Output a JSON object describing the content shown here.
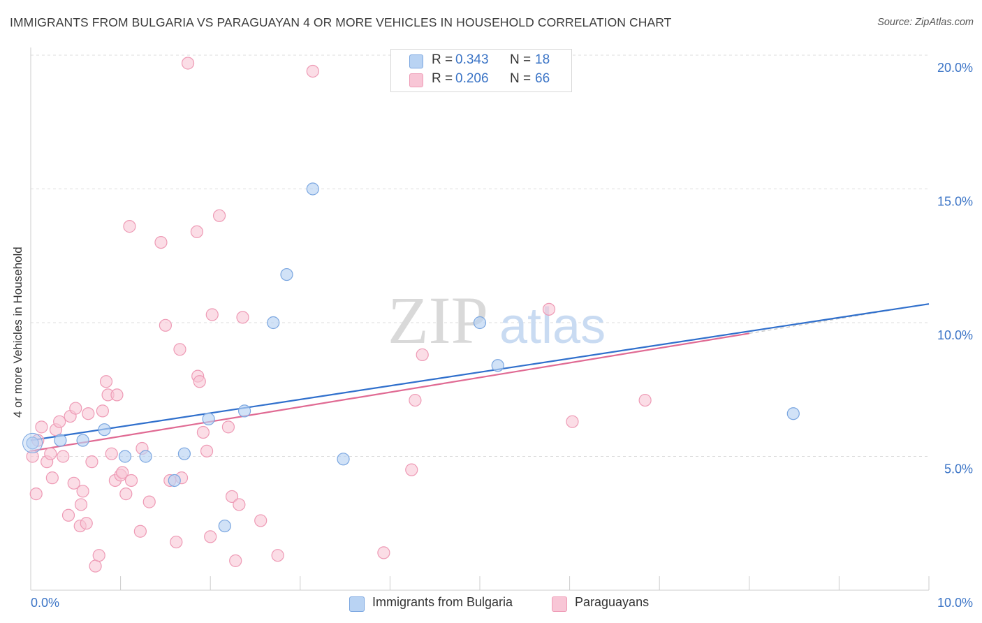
{
  "title": "IMMIGRANTS FROM BULGARIA VS PARAGUAYAN 4 OR MORE VEHICLES IN HOUSEHOLD CORRELATION CHART",
  "source": "Source: ZipAtlas.com",
  "watermark": {
    "zip": "ZIP",
    "atlas": "atlas"
  },
  "colors": {
    "blue_fill": "#b9d3f3",
    "blue_stroke": "#7aa6e0",
    "blue_line": "#2f6fcc",
    "pink_fill": "#f8c6d6",
    "pink_stroke": "#ee9ab5",
    "pink_line": "#e06a93",
    "tick_label": "#3b74c6",
    "grid": "#dcdcdc"
  },
  "legend": {
    "rows": [
      {
        "r_label": "R =",
        "r_value": "0.343",
        "n_label": "N =",
        "n_value": "18"
      },
      {
        "r_label": "R =",
        "r_value": "0.206",
        "n_label": "N =",
        "n_value": "66"
      }
    ]
  },
  "bottom_legend": {
    "series1": "Immigrants from Bulgaria",
    "series2": "Paraguayans"
  },
  "chart_data": {
    "type": "scatter",
    "title": "IMMIGRANTS FROM BULGARIA VS PARAGUAYAN 4 OR MORE VEHICLES IN HOUSEHOLD CORRELATION CHART",
    "xlabel": "",
    "ylabel": "4 or more Vehicles in Household",
    "xlim": [
      0,
      10
    ],
    "ylim": [
      0,
      20
    ],
    "x_tick_labels": [
      "0.0%",
      "10.0%"
    ],
    "y_tick_labels": [
      "5.0%",
      "10.0%",
      "15.0%",
      "20.0%"
    ],
    "y_ticks": [
      5,
      10,
      15,
      20
    ],
    "grid": true,
    "legend_position": "top-center",
    "series": [
      {
        "name": "Immigrants from Bulgaria",
        "color": "#b9d3f3",
        "points": [
          [
            0.02,
            5.5
          ],
          [
            0.33,
            5.6
          ],
          [
            0.58,
            5.6
          ],
          [
            0.82,
            6.0
          ],
          [
            1.05,
            5.0
          ],
          [
            1.28,
            5.0
          ],
          [
            1.6,
            4.1
          ],
          [
            1.71,
            5.1
          ],
          [
            1.98,
            6.4
          ],
          [
            2.16,
            2.4
          ],
          [
            2.38,
            6.7
          ],
          [
            2.7,
            10.0
          ],
          [
            2.85,
            11.8
          ],
          [
            3.14,
            15.0
          ],
          [
            3.48,
            4.9
          ],
          [
            5.0,
            10.0
          ],
          [
            5.2,
            8.4
          ],
          [
            8.49,
            6.6
          ]
        ],
        "trend": {
          "x": [
            0,
            10
          ],
          "y": [
            5.6,
            10.7
          ]
        }
      },
      {
        "name": "Paraguayans",
        "color": "#f8c6d6",
        "points": [
          [
            0.02,
            5.0
          ],
          [
            0.06,
            3.6
          ],
          [
            0.12,
            6.1
          ],
          [
            0.18,
            4.8
          ],
          [
            0.22,
            5.1
          ],
          [
            0.24,
            4.2
          ],
          [
            0.28,
            6.0
          ],
          [
            0.32,
            6.3
          ],
          [
            0.36,
            5.0
          ],
          [
            0.42,
            2.8
          ],
          [
            0.44,
            6.5
          ],
          [
            0.48,
            4.0
          ],
          [
            0.5,
            6.8
          ],
          [
            0.55,
            2.4
          ],
          [
            0.56,
            3.2
          ],
          [
            0.58,
            3.7
          ],
          [
            0.62,
            2.5
          ],
          [
            0.64,
            6.6
          ],
          [
            0.68,
            4.8
          ],
          [
            0.72,
            0.9
          ],
          [
            0.76,
            1.3
          ],
          [
            0.8,
            6.7
          ],
          [
            0.84,
            7.8
          ],
          [
            0.86,
            7.3
          ],
          [
            0.9,
            5.1
          ],
          [
            0.94,
            4.1
          ],
          [
            0.96,
            7.3
          ],
          [
            1.0,
            4.3
          ],
          [
            1.02,
            4.4
          ],
          [
            1.06,
            3.6
          ],
          [
            1.1,
            13.6
          ],
          [
            1.12,
            4.1
          ],
          [
            1.22,
            2.2
          ],
          [
            1.24,
            5.3
          ],
          [
            1.32,
            3.3
          ],
          [
            1.45,
            13.0
          ],
          [
            1.5,
            9.9
          ],
          [
            1.55,
            4.1
          ],
          [
            1.62,
            1.8
          ],
          [
            1.66,
            9.0
          ],
          [
            1.68,
            4.2
          ],
          [
            1.75,
            19.7
          ],
          [
            1.85,
            13.4
          ],
          [
            1.86,
            8.0
          ],
          [
            1.88,
            7.8
          ],
          [
            1.92,
            5.9
          ],
          [
            1.96,
            5.2
          ],
          [
            2.0,
            2.0
          ],
          [
            2.02,
            10.3
          ],
          [
            2.1,
            14.0
          ],
          [
            2.2,
            6.1
          ],
          [
            2.24,
            3.5
          ],
          [
            2.28,
            1.1
          ],
          [
            2.32,
            3.2
          ],
          [
            2.36,
            10.2
          ],
          [
            2.56,
            2.6
          ],
          [
            2.75,
            1.3
          ],
          [
            3.14,
            19.4
          ],
          [
            3.93,
            1.4
          ],
          [
            4.24,
            4.5
          ],
          [
            4.28,
            7.1
          ],
          [
            4.36,
            8.8
          ],
          [
            5.77,
            10.5
          ],
          [
            6.03,
            6.3
          ],
          [
            6.84,
            7.1
          ],
          [
            0.08,
            5.6
          ]
        ],
        "trend": {
          "x": [
            0,
            8.0
          ],
          "y": [
            5.2,
            9.6
          ]
        }
      }
    ]
  }
}
